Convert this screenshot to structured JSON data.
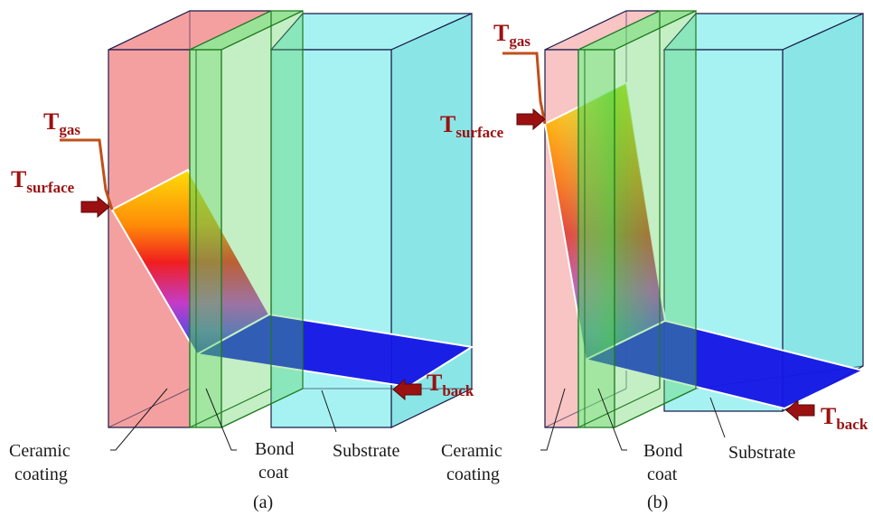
{
  "panels": [
    {
      "id": "a",
      "caption": "(a)",
      "labels": {
        "ceramic_line1": "Ceramic",
        "ceramic_line2": "coating",
        "bond_line1": "Bond",
        "bond_line2": "coat",
        "substrate": "Substrate"
      },
      "temps": {
        "gas": {
          "main": "T",
          "sub": "gas"
        },
        "surface": {
          "main": "T",
          "sub": "surface"
        },
        "back": {
          "main": "T",
          "sub": "back"
        }
      }
    },
    {
      "id": "b",
      "caption": "(b)",
      "labels": {
        "ceramic_line1": "Ceramic",
        "ceramic_line2": "coating",
        "bond_line1": "Bond",
        "bond_line2": "coat",
        "substrate": "Substrate"
      },
      "temps": {
        "gas": {
          "main": "T",
          "sub": "gas"
        },
        "surface": {
          "main": "T",
          "sub": "surface"
        },
        "back": {
          "main": "T",
          "sub": "back"
        }
      }
    }
  ],
  "colors": {
    "ceramic_a": "#f5a0a0",
    "ceramic_b": "#f8c4c4",
    "bond": "#55d155",
    "substrate": "#a6f2f2",
    "outline": "#1a1a4a",
    "temp_text": "#9b1111",
    "gas_line": "#c0501a",
    "back_plane": "#1414e6"
  }
}
